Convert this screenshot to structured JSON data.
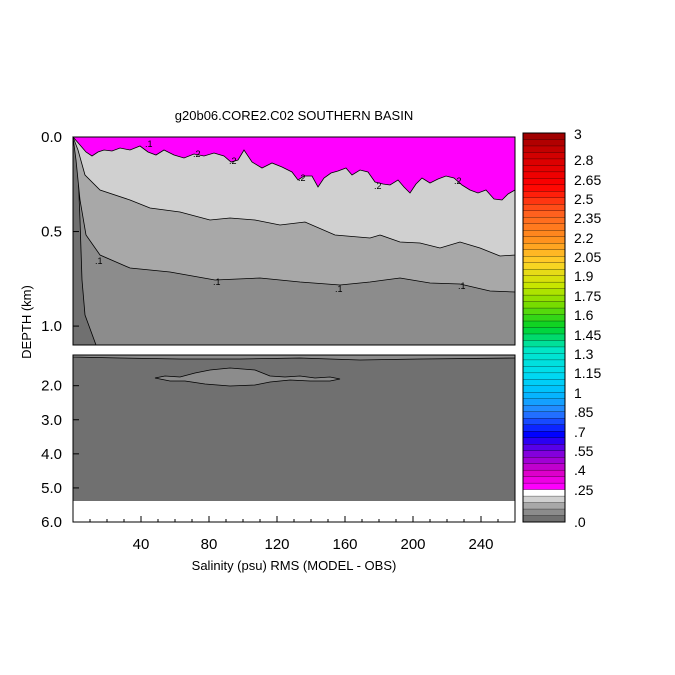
{
  "chart_data": {
    "type": "heatmap",
    "title": "g20b06.CORE2.C02 SOUTHERN BASIN",
    "xlabel": "Salinity (psu) RMS (MODEL - OBS)",
    "ylabel": "DEPTH (km)",
    "xlim": [
      0,
      260
    ],
    "x_ticks": [
      40,
      80,
      120,
      160,
      200,
      240
    ],
    "upper_panel": {
      "ylim": [
        0.0,
        1.1
      ],
      "y_ticks": [
        "0.0",
        "0.5",
        "1.0"
      ],
      "contour_labels": [
        ".1",
        ".1",
        ".1",
        ".1",
        ".1",
        ".2",
        ".2",
        ".2",
        ".2",
        ".2"
      ]
    },
    "lower_panel": {
      "ylim": [
        1.1,
        6.0
      ],
      "y_ticks": [
        "2.0",
        "3.0",
        "4.0",
        "5.0",
        "6.0"
      ]
    },
    "colorbar": {
      "min": 0,
      "max": 3,
      "labels": [
        "3",
        "2.8",
        "2.65",
        "2.5",
        "2.35",
        "2.2",
        "2.05",
        "1.9",
        "1.75",
        "1.6",
        "1.45",
        "1.3",
        "1.15",
        "1",
        ".85",
        ".7",
        ".55",
        ".4",
        ".25",
        ".0"
      ]
    },
    "grid": false
  },
  "colors": {
    "level_0_05": "#707070",
    "level_0_1": "#8c8c8c",
    "level_0_15": "#a8a8a8",
    "level_0_2": "#d0d0d0",
    "level_0_25": "#ff00ff",
    "masked": "#ffffff"
  }
}
